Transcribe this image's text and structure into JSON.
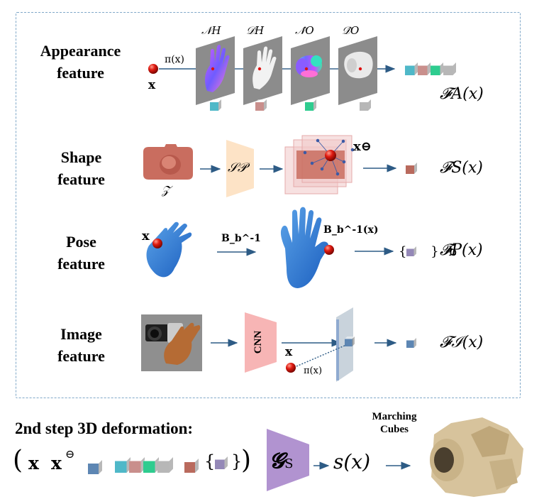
{
  "rows": {
    "appearance": {
      "label_line1": "Appearance",
      "label_line2": "feature",
      "proj": "π(x)",
      "point": "x",
      "maps": [
        "𝒩H",
        "𝒟H",
        "𝒩̂O",
        "𝒟̂O"
      ],
      "output": "𝓕A(x)"
    },
    "shape": {
      "label_line1": "Shape",
      "label_line2": "feature",
      "latent": "𝒵",
      "net": "𝒮𝒫",
      "point": "x⊖",
      "output": "𝓕S(x)"
    },
    "pose": {
      "label_line1": "Pose",
      "label_line2": "feature",
      "point": "x",
      "transform": "B_b^-1",
      "mapped": "B_b^-1(x)",
      "set": "{ }b",
      "output": "𝓕P(x)"
    },
    "image": {
      "label_line1": "Image",
      "label_line2": "feature",
      "net": "CNN",
      "point": "x",
      "proj": "π(x)",
      "output": "𝓕ℐ(x)"
    }
  },
  "step2": {
    "title": "2nd step 3D deformation:",
    "open": "(",
    "x": "x",
    "xo": "x",
    "xo_sup": "⊖",
    "set_open": "{",
    "set_close": "}",
    "close": ")",
    "net": "𝓖",
    "net_sub": "S",
    "output": "s(x)",
    "mc_line1": "Marching",
    "mc_line2": "Cubes"
  },
  "colors": {
    "cyan": "#4fb8c8",
    "pink": "#c98f8c",
    "green": "#2ecc8f",
    "gray": "#b7b7b7",
    "shape_red": "#b96a5d",
    "purple_cube": "#9488b7",
    "blue_cube": "#5d86b3",
    "arrow": "#2d5b85",
    "sp_net": "#fde3c6",
    "cnn_net": "#f7b5b5",
    "g_net": "#b193d0"
  }
}
